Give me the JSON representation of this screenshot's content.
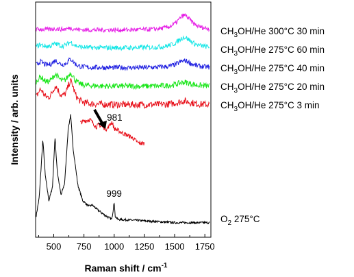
{
  "chart_data": {
    "type": "line",
    "title": "",
    "xlabel": "Raman shift / cm",
    "xlabel_sup": "-1",
    "ylabel": "Intensity / arb. units",
    "xlim": [
      350,
      1800
    ],
    "xticks": [
      500,
      750,
      1000,
      1250,
      1500,
      1750
    ],
    "grid": false,
    "legend_placement": "right of each trace",
    "series": [
      {
        "label": {
          "base": "O",
          "sub": "2",
          "rest": " 275°C"
        },
        "color": "#000000",
        "style": "o2",
        "points": [
          [
            350,
            0.05
          ],
          [
            380,
            0.25
          ],
          [
            410,
            0.78
          ],
          [
            430,
            0.45
          ],
          [
            460,
            0.22
          ],
          [
            490,
            0.35
          ],
          [
            510,
            0.8
          ],
          [
            530,
            0.48
          ],
          [
            560,
            0.27
          ],
          [
            590,
            0.38
          ],
          [
            620,
            0.88
          ],
          [
            640,
            1.0
          ],
          [
            660,
            0.7
          ],
          [
            700,
            0.36
          ],
          [
            740,
            0.22
          ],
          [
            790,
            0.17
          ],
          [
            820,
            0.18
          ],
          [
            860,
            0.14
          ],
          [
            920,
            0.09
          ],
          [
            980,
            0.05
          ],
          [
            990,
            0.12
          ],
          [
            999,
            0.22
          ],
          [
            1008,
            0.08
          ],
          [
            1030,
            0.05
          ],
          [
            1200,
            0.04
          ],
          [
            1500,
            0.02
          ],
          [
            1790,
            0.02
          ]
        ],
        "annotation": "999",
        "annotation_x": 999
      },
      {
        "label": {
          "base": "CH",
          "sub": "3",
          "rest": "OH/He 275°C 3 min"
        },
        "color": "#e8111b",
        "style": "methanol",
        "peaks": [
          [
            390,
            0.55
          ],
          [
            515,
            0.65
          ],
          [
            640,
            0.9
          ],
          [
            1580,
            0.15
          ]
        ],
        "inset": {
          "annotation": "981",
          "annotation_x": 981,
          "points": [
            [
              720,
              0.55
            ],
            [
              760,
              0.62
            ],
            [
              800,
              0.68
            ],
            [
              830,
              0.5
            ],
            [
              850,
              0.36
            ],
            [
              870,
              0.45
            ],
            [
              900,
              0.38
            ],
            [
              940,
              0.28
            ],
            [
              981,
              0.58
            ],
            [
              1000,
              0.3
            ],
            [
              1040,
              0.2
            ],
            [
              1080,
              0.08
            ],
            [
              1120,
              0.0
            ],
            [
              1160,
              -0.12
            ],
            [
              1200,
              -0.3
            ],
            [
              1250,
              -0.33
            ]
          ]
        }
      },
      {
        "label": {
          "base": "CH",
          "sub": "3",
          "rest": "OH/He 275°C 20 min"
        },
        "color": "#19e619",
        "style": "methanol",
        "peaks": [
          [
            390,
            0.4
          ],
          [
            515,
            0.5
          ],
          [
            640,
            0.6
          ],
          [
            1580,
            0.2
          ]
        ]
      },
      {
        "label": {
          "base": "CH",
          "sub": "3",
          "rest": "OH/He 275°C 40 min"
        },
        "color": "#1c1ce0",
        "style": "methanol",
        "peaks": [
          [
            390,
            0.3
          ],
          [
            515,
            0.35
          ],
          [
            640,
            0.45
          ],
          [
            1580,
            0.4
          ]
        ]
      },
      {
        "label": {
          "base": "CH",
          "sub": "3",
          "rest": "OH/He 275°C 60 min"
        },
        "color": "#14e6e6",
        "style": "methanol",
        "peaks": [
          [
            390,
            0.15
          ],
          [
            515,
            0.2
          ],
          [
            640,
            0.3
          ],
          [
            1580,
            0.6
          ]
        ]
      },
      {
        "label": {
          "base": "CH",
          "sub": "3",
          "rest": "OH/He 300°C 30 min"
        },
        "color": "#e620e6",
        "style": "methanol",
        "peaks": [
          [
            390,
            0.05
          ],
          [
            515,
            0.08
          ],
          [
            640,
            0.12
          ],
          [
            1580,
            0.9
          ]
        ]
      }
    ]
  }
}
